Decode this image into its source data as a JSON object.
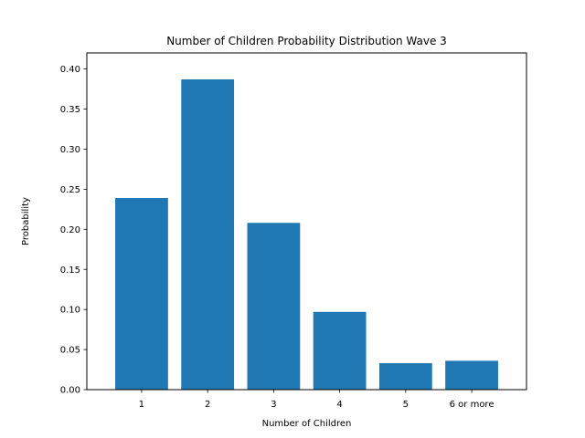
{
  "chart_data": {
    "type": "bar",
    "title": "Number of Children Probability Distribution Wave 3",
    "xlabel": "Number of Children",
    "ylabel": "Probability",
    "categories": [
      "1",
      "2",
      "3",
      "4",
      "5",
      "6 or more"
    ],
    "values": [
      0.239,
      0.387,
      0.208,
      0.097,
      0.033,
      0.036
    ],
    "ylim": [
      0,
      0.4
    ],
    "yticks": [
      "0.00",
      "0.05",
      "0.10",
      "0.15",
      "0.20",
      "0.25",
      "0.30",
      "0.35",
      "0.40"
    ],
    "grid": false,
    "bar_color": "#1f77b4"
  }
}
